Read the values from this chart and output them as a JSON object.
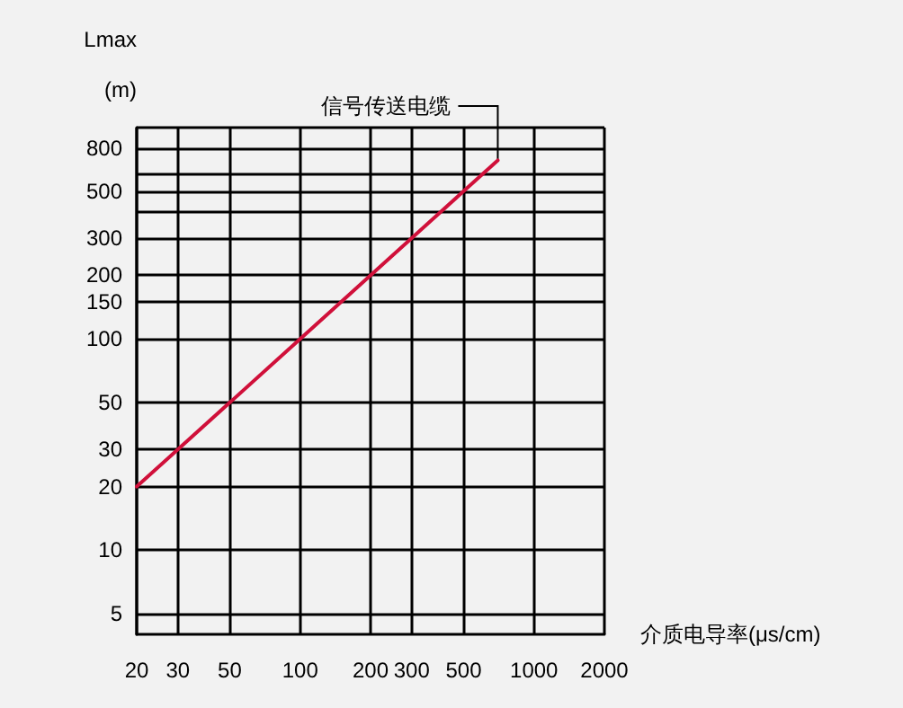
{
  "chart_data": {
    "type": "line",
    "xlabel": "介质电导率(μs/cm)",
    "ylabel": "Lmax (m)",
    "x": [
      20,
      100,
      300,
      500,
      700
    ],
    "series": [
      {
        "color": "#d0103a",
        "values": [
          20,
          100,
          300,
          500,
          700
        ]
      }
    ],
    "log": "xy",
    "xlim": [
      20,
      2000
    ],
    "ylim": [
      4,
      1000
    ],
    "xticks": [
      20,
      30,
      50,
      100,
      200,
      300,
      500,
      1000,
      2000
    ],
    "yticks": [
      5,
      10,
      20,
      30,
      50,
      100,
      150,
      200,
      300,
      {
        "value": 400,
        "label": null
      },
      500,
      {
        "value": 600,
        "label": null
      },
      800,
      {
        "value": 1000,
        "label": null
      }
    ],
    "grid": true,
    "marker": "none",
    "line_style": "solid",
    "annotations": [
      {
        "text": "信号传送电缆",
        "x": 700,
        "y": 700
      }
    ]
  }
}
